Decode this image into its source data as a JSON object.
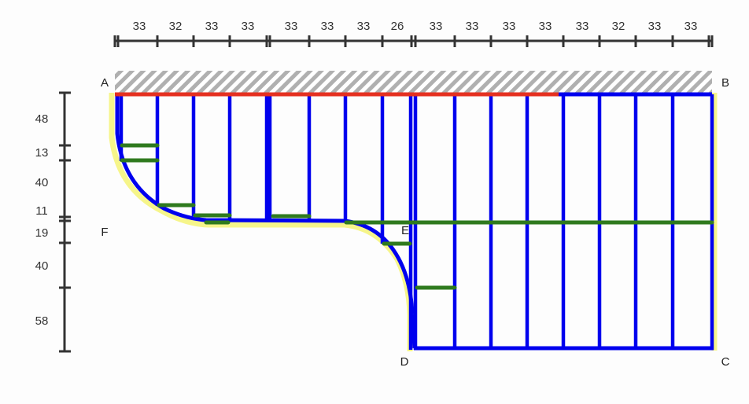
{
  "top_dimensions": [
    "33",
    "32",
    "33",
    "33",
    "33",
    "33",
    "33",
    "26",
    "33",
    "33",
    "33",
    "33",
    "33",
    "32",
    "33",
    "33"
  ],
  "left_dimensions": [
    "48",
    "13",
    "40",
    "11",
    "19",
    "40",
    "58"
  ],
  "points": {
    "A": "A",
    "B": "B",
    "C": "C",
    "D": "D",
    "E": "E",
    "F": "F"
  },
  "colors": {
    "stud": "#0000ee",
    "top_plate": "#e53020",
    "blocking": "#2f7a1e",
    "edge": "#f6f58a",
    "hatch": "#b0b0b0",
    "dimension": "#333333"
  }
}
